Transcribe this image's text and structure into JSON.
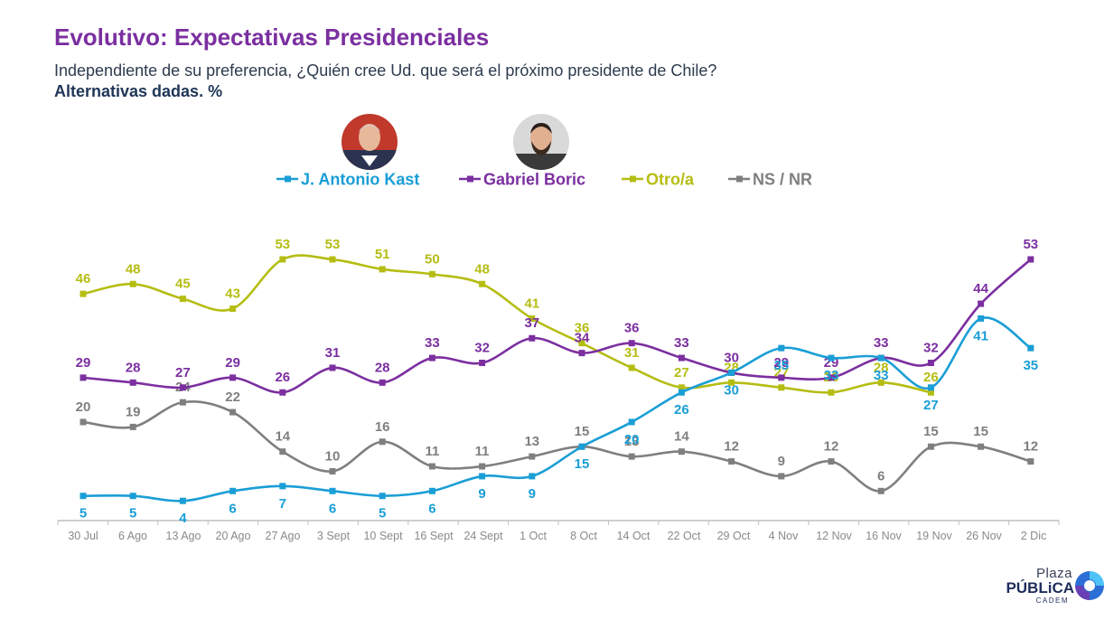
{
  "header": {
    "title": "Evolutivo: Expectativas Presidenciales",
    "subtitle": "Independiente de su preferencia, ¿Quién cree Ud. que será el próximo presidente de Chile?",
    "subtitle_bold": "Alternativas dadas. %"
  },
  "logo": {
    "line1": "Plaza",
    "line2": "PÚBLiCA",
    "line3": "CADEM"
  },
  "chart_data": {
    "type": "line",
    "title": "Evolutivo: Expectativas Presidenciales",
    "xlabel": "",
    "ylabel": "",
    "ylim": [
      0,
      56
    ],
    "grid": false,
    "legend_position": "top-center",
    "categories": [
      "30 Jul",
      "6 Ago",
      "13 Ago",
      "20 Ago",
      "27 Ago",
      "3 Sept",
      "10 Sept",
      "16 Sept",
      "24 Sept",
      "1 Oct",
      "8 Oct",
      "14 Oct",
      "22 Oct",
      "29 Oct",
      "4 Nov",
      "12 Nov",
      "16 Nov",
      "19 Nov",
      "26 Nov",
      "2 Dic"
    ],
    "series": [
      {
        "name": "J. Antonio Kast",
        "color": "#1a9ed6",
        "label_pos": "below",
        "values": [
          5,
          5,
          4,
          6,
          7,
          6,
          5,
          6,
          9,
          9,
          15,
          20,
          26,
          30,
          35,
          33,
          33,
          27,
          41,
          35
        ]
      },
      {
        "name": "Gabriel Boric",
        "color": "#7b2fa0",
        "label_pos": "above",
        "values": [
          29,
          28,
          27,
          29,
          26,
          31,
          28,
          33,
          32,
          37,
          34,
          36,
          33,
          30,
          29,
          29,
          33,
          32,
          44,
          53
        ]
      },
      {
        "name": "Otro/a",
        "color": "#b5bd13",
        "label_pos": "above",
        "values": [
          46,
          48,
          45,
          43,
          53,
          53,
          51,
          50,
          48,
          41,
          36,
          31,
          27,
          28,
          27,
          26,
          28,
          26,
          null,
          null
        ]
      },
      {
        "name": "NS / NR",
        "color": "#7f7f7f",
        "label_pos": "above",
        "values": [
          20,
          19,
          24,
          22,
          14,
          10,
          16,
          11,
          11,
          13,
          15,
          13,
          14,
          12,
          9,
          12,
          6,
          15,
          15,
          12
        ]
      }
    ]
  }
}
